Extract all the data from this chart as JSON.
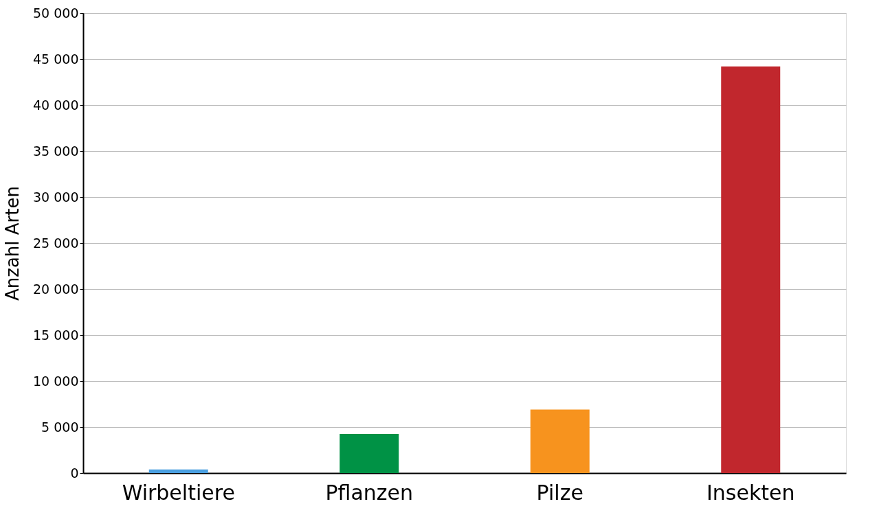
{
  "chart_data": {
    "type": "bar",
    "ylabel": "Anzahl Arten",
    "categories": [
      "Wirbeltiere",
      "Pflanzen",
      "Pilze",
      "Insekten"
    ],
    "values": [
      400,
      4250,
      6900,
      44200
    ],
    "colors": [
      "#4a9fe0",
      "#009245",
      "#f7931e",
      "#c1272d"
    ],
    "ylim": [
      0,
      50000
    ],
    "yticks": [
      {
        "value": 0,
        "label": "0"
      },
      {
        "value": 5000,
        "label": "5 000"
      },
      {
        "value": 10000,
        "label": "10 000"
      },
      {
        "value": 15000,
        "label": "15 000"
      },
      {
        "value": 20000,
        "label": "20 000"
      },
      {
        "value": 25000,
        "label": "25 000"
      },
      {
        "value": 30000,
        "label": "30 000"
      },
      {
        "value": 35000,
        "label": "35 000"
      },
      {
        "value": 40000,
        "label": "40 000"
      },
      {
        "value": 45000,
        "label": "45 000"
      },
      {
        "value": 50000,
        "label": "50 000"
      }
    ],
    "grid": "y",
    "legend": false
  }
}
